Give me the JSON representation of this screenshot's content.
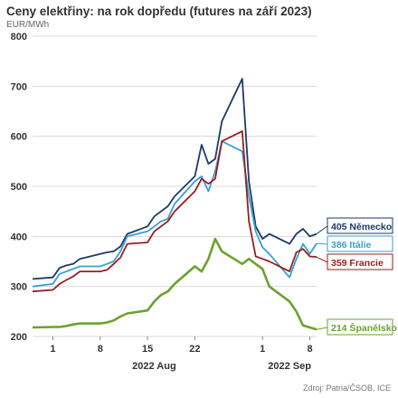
{
  "title": "Ceny elektřiny: na rok dopředu (futures na září 2023)",
  "unit": "EUR/MWh",
  "source": "Zdroj: Patria/ČSOB, ICE",
  "chart_data": {
    "type": "line",
    "title": "Ceny elektřiny: na rok dopředu (futures na září 2023)",
    "ylabel": "EUR/MWh",
    "ylim": [
      200,
      800
    ],
    "yticks": [
      200,
      300,
      400,
      500,
      600,
      700,
      800
    ],
    "grid": "horizontal",
    "x_tick_labels": [
      "1",
      "8",
      "15",
      "22",
      "1",
      "8"
    ],
    "x_period_labels": [
      "2022 Aug",
      "2022 Sep"
    ],
    "x": [
      "2022-07-29",
      "2022-08-01",
      "2022-08-02",
      "2022-08-03",
      "2022-08-04",
      "2022-08-05",
      "2022-08-08",
      "2022-08-09",
      "2022-08-10",
      "2022-08-11",
      "2022-08-12",
      "2022-08-15",
      "2022-08-16",
      "2022-08-17",
      "2022-08-18",
      "2022-08-19",
      "2022-08-22",
      "2022-08-23",
      "2022-08-24",
      "2022-08-25",
      "2022-08-26",
      "2022-08-29",
      "2022-08-30",
      "2022-08-31",
      "2022-09-01",
      "2022-09-02",
      "2022-09-05",
      "2022-09-06",
      "2022-09-07",
      "2022-09-08",
      "2022-09-09"
    ],
    "series": [
      {
        "name": "Německo",
        "color": "#1c3a68",
        "end_label": "405 Německo",
        "values": [
          315,
          318,
          337,
          342,
          345,
          355,
          365,
          368,
          370,
          380,
          405,
          420,
          440,
          450,
          460,
          480,
          520,
          583,
          545,
          555,
          630,
          715,
          510,
          420,
          395,
          405,
          385,
          405,
          415,
          400,
          405
        ]
      },
      {
        "name": "Itálie",
        "color": "#3aa0d0",
        "end_label": "386 Itálie",
        "values": [
          300,
          305,
          325,
          330,
          335,
          340,
          340,
          345,
          350,
          370,
          400,
          410,
          420,
          430,
          435,
          465,
          510,
          520,
          490,
          530,
          590,
          570,
          480,
          410,
          378,
          365,
          318,
          355,
          385,
          365,
          386
        ]
      },
      {
        "name": "Francie",
        "color": "#991e1e",
        "end_label": "359 Francie",
        "values": [
          290,
          293,
          305,
          313,
          320,
          330,
          330,
          333,
          345,
          358,
          385,
          388,
          410,
          420,
          430,
          450,
          490,
          515,
          505,
          515,
          590,
          610,
          430,
          360,
          355,
          350,
          330,
          368,
          375,
          360,
          359
        ]
      },
      {
        "name": "Španělsko",
        "color": "#6aa22e",
        "end_label": "214 Španělsko",
        "values": [
          218,
          219,
          219,
          221,
          224,
          226,
          226,
          228,
          232,
          240,
          246,
          252,
          270,
          283,
          290,
          305,
          340,
          330,
          355,
          395,
          370,
          345,
          355,
          345,
          335,
          300,
          270,
          250,
          222,
          218,
          214
        ]
      }
    ]
  }
}
